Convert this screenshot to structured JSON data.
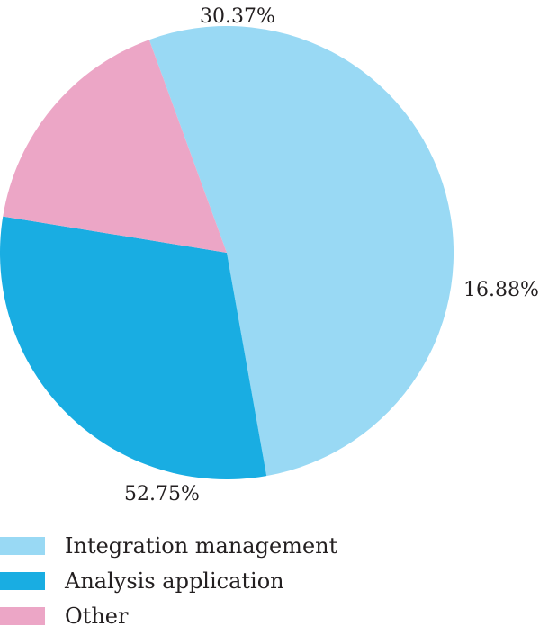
{
  "chart_data": {
    "type": "pie",
    "title": "",
    "slices": [
      {
        "label": "Integration management",
        "value": 52.75,
        "display": "52.75%",
        "color": "#99d9f4"
      },
      {
        "label": "Analysis application",
        "value": 30.37,
        "display": "30.37%",
        "color": "#19ade2"
      },
      {
        "label": "Other",
        "value": 16.88,
        "display": "16.88%",
        "color": "#eca6c6"
      }
    ],
    "legend_position": "bottom-left"
  }
}
